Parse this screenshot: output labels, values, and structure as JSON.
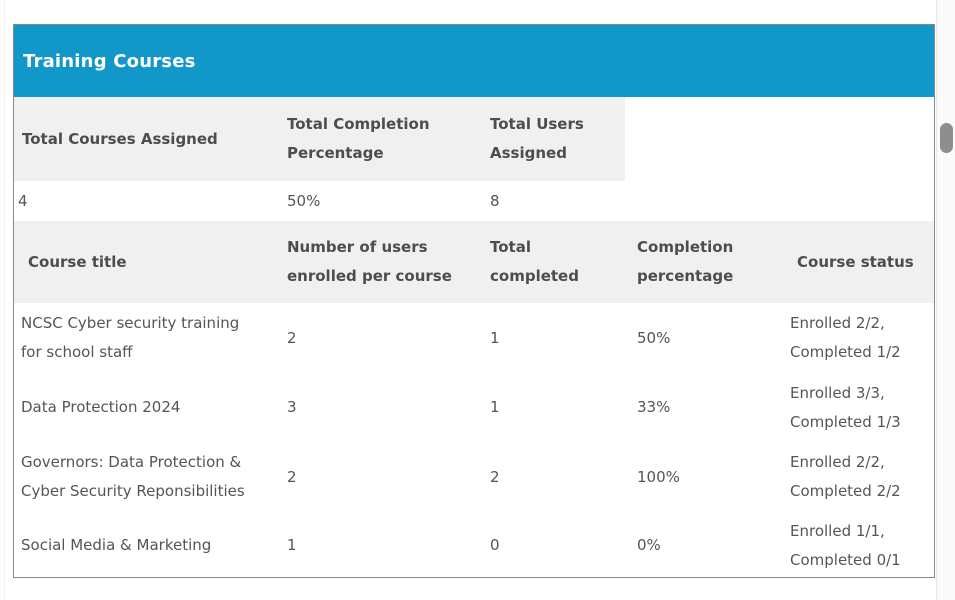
{
  "panel": {
    "title": "Training Courses"
  },
  "summary_table": {
    "columns": [
      "Total Courses Assigned",
      "Total Completion\nPercentage",
      "Total Users\nAssigned"
    ],
    "values": {
      "total_courses_assigned": "4",
      "total_completion_percentage": "50%",
      "total_users_assigned": "8"
    }
  },
  "courses_table": {
    "columns": [
      "Course title",
      "Number of users\nenrolled per course",
      "Total\ncompleted",
      "Completion\npercentage",
      "Course status"
    ],
    "rows": [
      {
        "title": "NCSC Cyber security training\nfor school staff",
        "enrolled": "2",
        "completed": "1",
        "percentage": "50%",
        "status": "Enrolled 2/2,\nCompleted 1/2"
      },
      {
        "title": "Data Protection 2024",
        "enrolled": "3",
        "completed": "1",
        "percentage": "33%",
        "status": "Enrolled 3/3,\nCompleted 1/3"
      },
      {
        "title": "Governors: Data Protection &\nCyber Security Reponsibilities",
        "enrolled": "2",
        "completed": "2",
        "percentage": "100%",
        "status": "Enrolled 2/2,\nCompleted 2/2"
      },
      {
        "title": "Social Media & Marketing",
        "enrolled": "1",
        "completed": "0",
        "percentage": "0%",
        "status": "Enrolled 1/1,\nCompleted 0/1"
      }
    ]
  },
  "colors": {
    "accent": "#1297c9",
    "table_header_bg": "#f0f0f0",
    "scrollbar_thumb": "#8e8e8e"
  }
}
